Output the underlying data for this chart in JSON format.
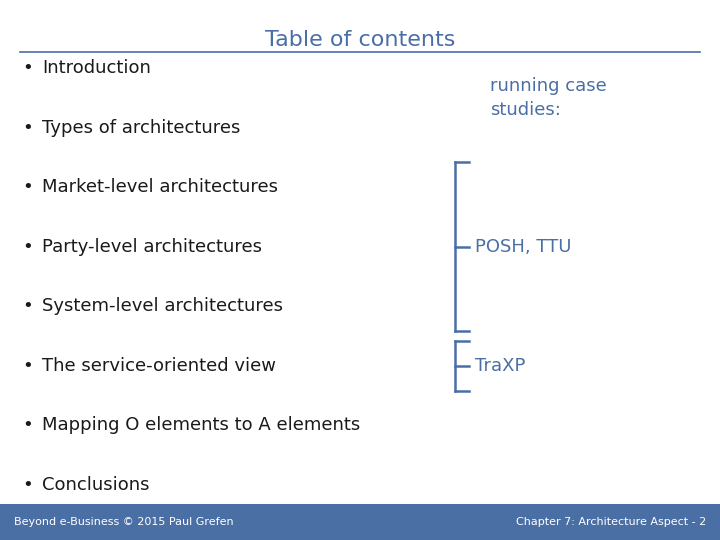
{
  "title": "Table of contents",
  "title_color": "#4a6fa5",
  "title_fontsize": 16,
  "background_color": "#ffffff",
  "bullet_color": "#1a1a1a",
  "bullet_items": [
    "Introduction",
    "Types of architectures",
    "Market-level architectures",
    "Party-level architectures",
    "System-level architectures",
    "The service-oriented view",
    "Mapping O elements to A elements",
    "Conclusions"
  ],
  "bullet_fontsize": 13,
  "accent_color": "#4a6fa5",
  "running_case_text": "running case\nstudies:",
  "running_case_fontsize": 13,
  "posh_ttu_text": "POSH, TTU",
  "posh_ttu_fontsize": 13,
  "traxp_text": "TraXP",
  "traxp_fontsize": 13,
  "footer_left": "Beyond e-Business © 2015 Paul Grefen",
  "footer_right": "Chapter 7: Architecture Aspect - 2",
  "footer_color": "#ffffff",
  "footer_bg_color": "#4a6fa5",
  "separator_color": "#4a6fa5",
  "line_color": "#4a6fa5",
  "footer_fontsize": 8
}
